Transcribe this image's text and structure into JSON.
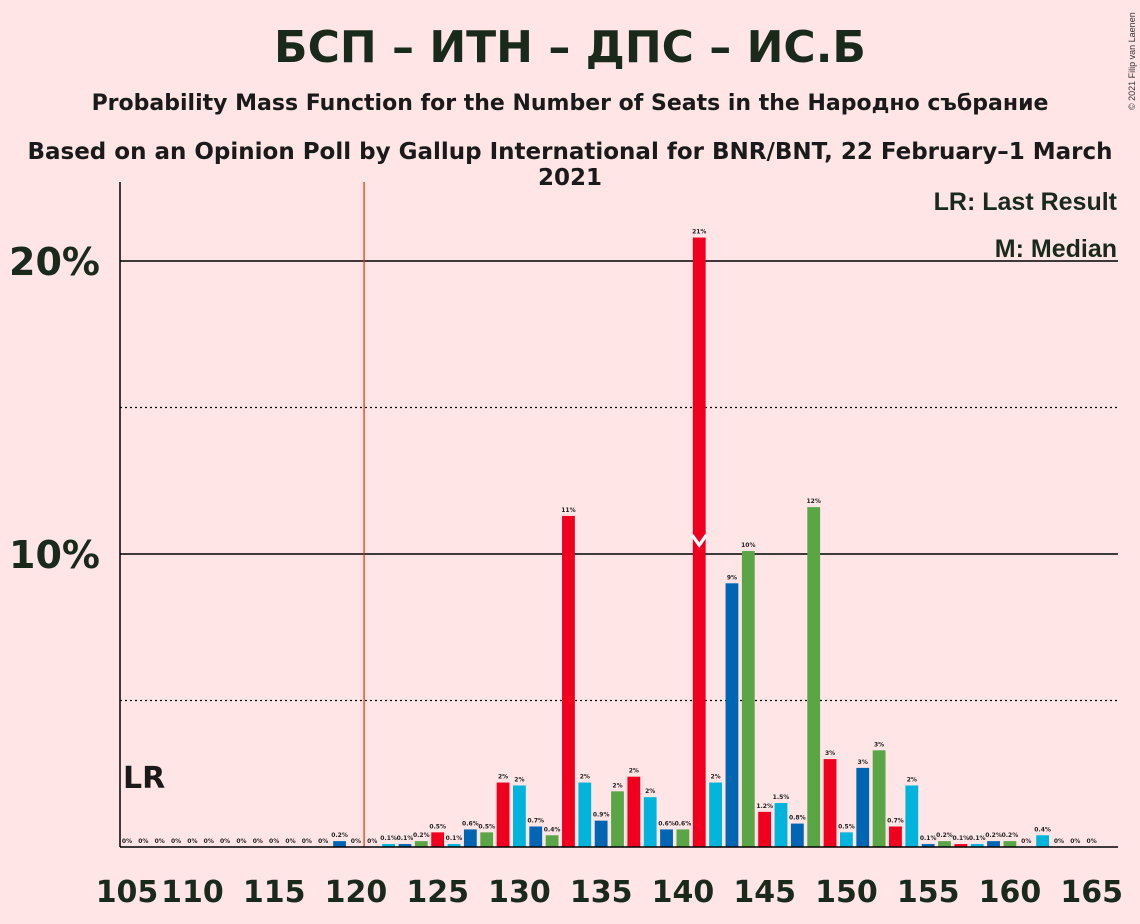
{
  "title": "БСП – ИТН – ДПС – ИС.Б",
  "subtitle1": "Probability Mass Function for the Number of Seats in the Народно събрание",
  "subtitle2": "Based on an Opinion Poll by Gallup International for BNR/BNT, 22 February–1 March 2021",
  "copyright": "© 2021 Filip van Laenen",
  "legend": {
    "lr": "LR: Last Result",
    "median": "M: Median"
  },
  "lr_label": "LR",
  "median_marker": "M",
  "colors": {
    "cyan": "#00B4DC",
    "blue": "#0066B4",
    "green": "#5AA546",
    "red": "#F0001E",
    "lr_line": "#E03000",
    "background": "#FFE5E5"
  },
  "chart_data": {
    "type": "bar",
    "xlabel": "",
    "ylabel": "",
    "xlim": [
      105,
      165
    ],
    "ylim": [
      0,
      22.5
    ],
    "x_ticks": [
      105,
      110,
      115,
      120,
      125,
      130,
      135,
      140,
      145,
      150,
      155,
      160,
      165
    ],
    "y_ticks": [
      {
        "value": 10,
        "label": "10%"
      },
      {
        "value": 20,
        "label": "20%"
      }
    ],
    "y_dotted_lines": [
      5,
      15
    ],
    "last_result": 120.5,
    "median": 141,
    "grid": true,
    "legend_position": "top-right",
    "seats": [
      106,
      107,
      108,
      109,
      110,
      111,
      112,
      113,
      114,
      115,
      116,
      117,
      118,
      119,
      120,
      121,
      122,
      123,
      124,
      125,
      126,
      127,
      128,
      129,
      130,
      131,
      132,
      133,
      134,
      135,
      136,
      137,
      138,
      139,
      140,
      141,
      142,
      143,
      144,
      145,
      146,
      147,
      148,
      149,
      150,
      151,
      152,
      153,
      154,
      155,
      156,
      157,
      158,
      159,
      160,
      161,
      162,
      163,
      164,
      165
    ],
    "values": [
      0,
      0,
      0,
      0,
      0,
      0,
      0,
      0,
      0,
      0,
      0,
      0,
      0,
      0.2,
      0,
      0,
      0.1,
      0.1,
      0.2,
      0.5,
      0.1,
      0.6,
      0.5,
      2.2,
      2.1,
      0.7,
      0.4,
      11.3,
      2.2,
      0.9,
      1.9,
      2.4,
      1.7,
      0.6,
      0.6,
      20.8,
      2.2,
      9.0,
      10.1,
      1.2,
      1.5,
      0.8,
      11.6,
      3.0,
      0.5,
      2.7,
      3.3,
      0.7,
      2.1,
      0.1,
      0.2,
      0.1,
      0.1,
      0.2,
      0.2,
      0,
      0.4,
      0,
      0,
      0
    ],
    "labels": [
      "0%",
      "0%",
      "0%",
      "0%",
      "0%",
      "0%",
      "0%",
      "0%",
      "0%",
      "0%",
      "0%",
      "0%",
      "0%",
      "0.2%",
      "0%",
      "0%",
      "0.1%",
      "0.1%",
      "0.2%",
      "0.5%",
      "0.1%",
      "0.6%",
      "0.5%",
      "2%",
      "2%",
      "0.7%",
      "0.4%",
      "11%",
      "2%",
      "0.9%",
      "2%",
      "2%",
      "2%",
      "0.6%",
      "0.6%",
      "21%",
      "2%",
      "9%",
      "10%",
      "1.2%",
      "1.5%",
      "0.8%",
      "12%",
      "3%",
      "0.5%",
      "3%",
      "3%",
      "0.7%",
      "2%",
      "0.1%",
      "0.2%",
      "0.1%",
      "0.1%",
      "0.2%",
      "0.2%",
      "0%",
      "0.4%",
      "0%",
      "0%",
      "0%"
    ],
    "bar_colors": [
      "cyan",
      "blue",
      "green",
      "red"
    ]
  }
}
